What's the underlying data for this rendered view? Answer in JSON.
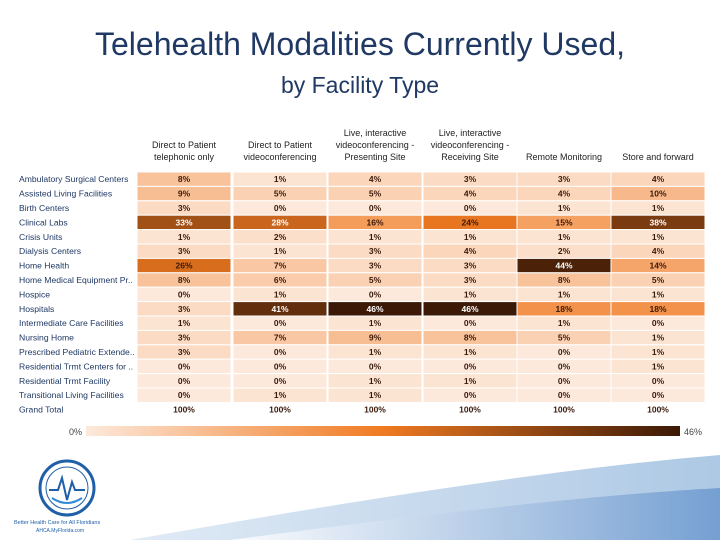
{
  "slide": {
    "title": "Telehealth Modalities Currently Used,",
    "subtitle": "by Facility Type"
  },
  "logo": {
    "tagline": "Better Health Care for All Floridians",
    "org": "AHCA.MyFlorida.com"
  },
  "colors": {
    "title": "#1f3864",
    "scale_low": "#fde9db",
    "scale_mid": "#f07a22",
    "scale_high": "#3b1906"
  },
  "chart_data": {
    "type": "heatmap",
    "columns": [
      "Direct to Patient telephonic only",
      "Direct to Patient videoconferencing",
      "Live, interactive videoconferencing - Presenting Site",
      "Live, interactive videoconferencing - Receiving Site",
      "Remote Monitoring",
      "Store and forward"
    ],
    "rows": [
      {
        "label": "Ambulatory Surgical Centers",
        "values": [
          8,
          1,
          4,
          3,
          3,
          4
        ]
      },
      {
        "label": "Assisted Living Facilities",
        "values": [
          9,
          5,
          5,
          4,
          4,
          10
        ]
      },
      {
        "label": "Birth Centers",
        "values": [
          3,
          0,
          0,
          0,
          1,
          1
        ]
      },
      {
        "label": "Clinical Labs",
        "values": [
          33,
          28,
          16,
          24,
          15,
          38
        ]
      },
      {
        "label": "Crisis Units",
        "values": [
          1,
          2,
          1,
          1,
          1,
          1
        ]
      },
      {
        "label": "Dialysis Centers",
        "values": [
          3,
          1,
          3,
          4,
          2,
          4
        ]
      },
      {
        "label": "Home Health",
        "values": [
          26,
          7,
          3,
          3,
          44,
          14
        ]
      },
      {
        "label": "Home Medical Equipment Pr..",
        "values": [
          8,
          6,
          5,
          3,
          8,
          5
        ]
      },
      {
        "label": "Hospice",
        "values": [
          0,
          1,
          0,
          1,
          1,
          1
        ]
      },
      {
        "label": "Hospitals",
        "values": [
          3,
          41,
          46,
          46,
          18,
          18
        ]
      },
      {
        "label": "Intermediate Care Facilities",
        "values": [
          1,
          0,
          1,
          0,
          1,
          0
        ]
      },
      {
        "label": "Nursing Home",
        "values": [
          3,
          7,
          9,
          8,
          5,
          1
        ]
      },
      {
        "label": "Prescribed Pediatric Extende..",
        "values": [
          3,
          0,
          1,
          1,
          0,
          1
        ]
      },
      {
        "label": "Residential Trmt Centers for ..",
        "values": [
          0,
          0,
          0,
          0,
          0,
          1
        ]
      },
      {
        "label": "Residential Trmt Facility",
        "values": [
          0,
          0,
          1,
          1,
          0,
          0
        ]
      },
      {
        "label": "Transitional Living Facilities",
        "values": [
          0,
          1,
          1,
          0,
          0,
          0
        ]
      }
    ],
    "total_row": {
      "label": "Grand Total",
      "values": [
        100,
        100,
        100,
        100,
        100,
        100
      ]
    },
    "value_suffix": "%",
    "legend": {
      "min_label": "0%",
      "max_label": "46%",
      "min": 0,
      "max": 46,
      "placement": "bottom"
    }
  }
}
